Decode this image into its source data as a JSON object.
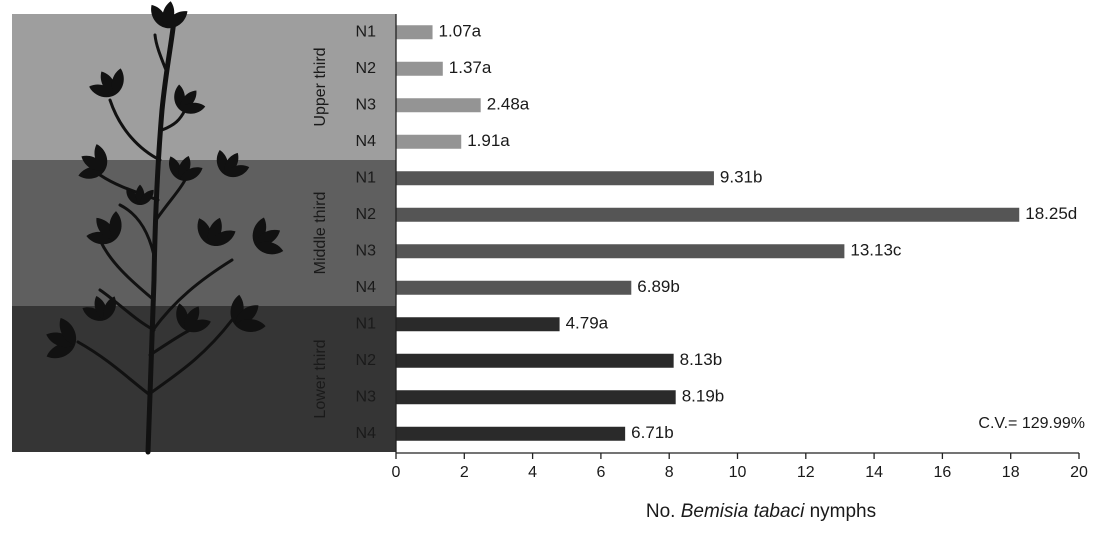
{
  "chart_data": {
    "type": "bar",
    "orientation": "horizontal",
    "xlabel_prefix": "No. ",
    "xlabel_species": "Bemisia tabaci",
    "xlabel_suffix": " nymphs",
    "xlim": [
      0,
      20
    ],
    "xticks": [
      0,
      2,
      4,
      6,
      8,
      10,
      12,
      14,
      16,
      18,
      20
    ],
    "annotation": "C.V.= 129.99%",
    "groups": [
      {
        "name": "Upper third",
        "band_color": "#9e9e9e",
        "bar_color": "#949494",
        "bars": [
          {
            "label": "N1",
            "value": 1.07,
            "value_label": "1.07a"
          },
          {
            "label": "N2",
            "value": 1.37,
            "value_label": "1.37a"
          },
          {
            "label": "N3",
            "value": 2.48,
            "value_label": "2.48a"
          },
          {
            "label": "N4",
            "value": 1.91,
            "value_label": "1.91a"
          }
        ]
      },
      {
        "name": "Middle third",
        "band_color": "#5f5f5f",
        "bar_color": "#555555",
        "bars": [
          {
            "label": "N1",
            "value": 9.31,
            "value_label": "9.31b"
          },
          {
            "label": "N2",
            "value": 18.25,
            "value_label": "18.25d"
          },
          {
            "label": "N3",
            "value": 13.13,
            "value_label": "13.13c"
          },
          {
            "label": "N4",
            "value": 6.89,
            "value_label": "6.89b"
          }
        ]
      },
      {
        "name": "Lower third",
        "band_color": "#353535",
        "bar_color": "#2a2a2a",
        "bars": [
          {
            "label": "N1",
            "value": 4.79,
            "value_label": "4.79a"
          },
          {
            "label": "N2",
            "value": 8.13,
            "value_label": "8.13b"
          },
          {
            "label": "N3",
            "value": 8.19,
            "value_label": "8.19b"
          },
          {
            "label": "N4",
            "value": 6.71,
            "value_label": "6.71b"
          }
        ]
      }
    ],
    "decoration": "plant-silhouette"
  }
}
